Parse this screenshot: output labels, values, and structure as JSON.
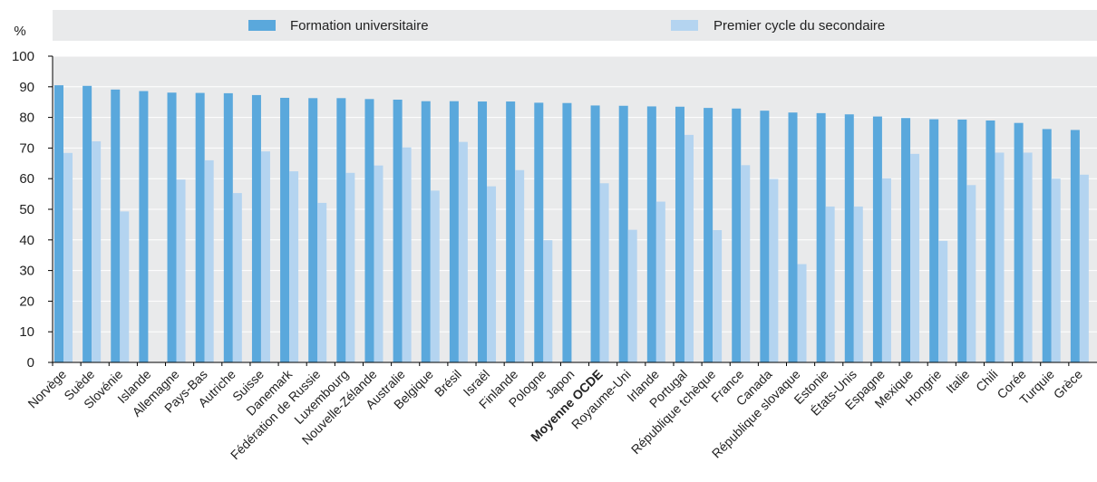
{
  "chart_data": {
    "type": "bar",
    "ylabel": "%",
    "ylim": [
      0,
      100
    ],
    "yticks": [
      0,
      10,
      20,
      30,
      40,
      50,
      60,
      70,
      80,
      90,
      100
    ],
    "grid": true,
    "legend_position": "top",
    "categories": [
      "Norvège",
      "Suède",
      "Slovénie",
      "Islande",
      "Allemagne",
      "Pays-Bas",
      "Autriche",
      "Suisse",
      "Danemark",
      "Fédération de Russie",
      "Luxembourg",
      "Nouvelle-Zélande",
      "Australie",
      "Belgique",
      "Brésil",
      "Israël",
      "Finlande",
      "Pologne",
      "Japon",
      "Moyenne OCDE",
      "Royaume-Uni",
      "Irlande",
      "Portugal",
      "République tchèque",
      "France",
      "Canada",
      "République slovaque",
      "Estonie",
      "États-Unis",
      "Espagne",
      "Mexique",
      "Hongrie",
      "Italie",
      "Chili",
      "Corée",
      "Turquie",
      "Grèce"
    ],
    "highlight_category": "Moyenne OCDE",
    "series": [
      {
        "name": "Formation universitaire",
        "color": "#5aa8dc",
        "values": [
          90.5,
          90.3,
          89.1,
          88.6,
          88.1,
          88.0,
          87.9,
          87.3,
          86.4,
          86.3,
          86.3,
          86.0,
          85.8,
          85.3,
          85.3,
          85.2,
          85.2,
          84.8,
          84.7,
          83.9,
          83.8,
          83.6,
          83.5,
          83.1,
          82.9,
          82.2,
          81.6,
          81.4,
          81.0,
          80.3,
          79.8,
          79.4,
          79.3,
          79.0,
          78.2,
          76.2,
          75.9
        ]
      },
      {
        "name": "Premier cycle du secondaire",
        "color": "#b4d4f0",
        "values": [
          68.4,
          72.2,
          49.3,
          null,
          59.7,
          66.0,
          55.3,
          68.9,
          62.4,
          52.1,
          61.9,
          64.3,
          70.2,
          56.1,
          72.0,
          57.5,
          62.8,
          39.9,
          null,
          58.5,
          43.3,
          52.5,
          74.3,
          43.2,
          64.4,
          59.9,
          32.1,
          50.9,
          50.9,
          60.1,
          68.1,
          39.7,
          57.9,
          68.5,
          68.5,
          60.0,
          61.3
        ]
      }
    ]
  }
}
